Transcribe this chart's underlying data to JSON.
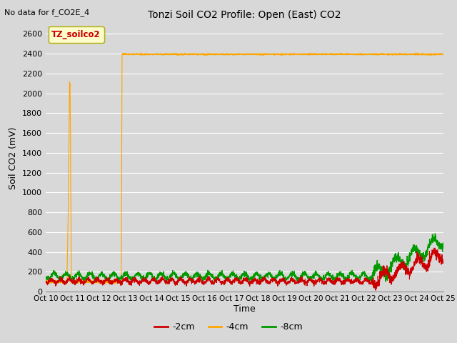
{
  "title": "Tonzi Soil CO2 Profile: Open (East) CO2",
  "no_data_text": "No data for f_CO2E_4",
  "ylabel": "Soil CO2 (mV)",
  "xlabel": "Time",
  "legend_label": "TZ_soilco2",
  "series_labels": [
    "-2cm",
    "-4cm",
    "-8cm"
  ],
  "series_colors": [
    "#cc0000",
    "#ffa500",
    "#009900"
  ],
  "ylim": [
    0,
    2700
  ],
  "yticks": [
    0,
    200,
    400,
    600,
    800,
    1000,
    1200,
    1400,
    1600,
    1800,
    2000,
    2200,
    2400,
    2600
  ],
  "background_color": "#d8d8d8",
  "plot_bg_color": "#d8d8d8",
  "grid_color": "#ffffff",
  "x_start": 10,
  "x_end": 25,
  "x_ticks": [
    10,
    11,
    12,
    13,
    14,
    15,
    16,
    17,
    18,
    19,
    20,
    21,
    22,
    23,
    24,
    25
  ],
  "x_tick_labels": [
    "Oct 10",
    "Oct 11",
    "Oct 12",
    "Oct 13",
    "Oct 14",
    "Oct 15",
    "Oct 16",
    "Oct 17",
    "Oct 18",
    "Oct 19",
    "Oct 20",
    "Oct 21",
    "Oct 22",
    "Oct 23",
    "Oct 24",
    "Oct 25"
  ]
}
